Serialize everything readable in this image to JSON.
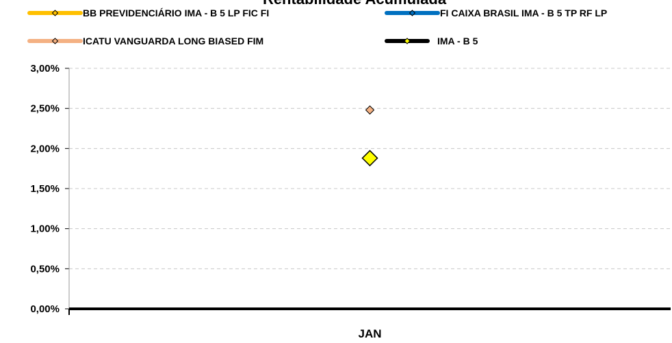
{
  "chart_data": {
    "type": "line",
    "title": "Rentabilidade Acumulada",
    "categories": [
      "JAN"
    ],
    "yticks": [
      "0,00%",
      "0,50%",
      "1,00%",
      "1,50%",
      "2,00%",
      "2,50%",
      "3,00%"
    ],
    "ylim": [
      0,
      3
    ],
    "grid": true,
    "legend_position": "top",
    "series": [
      {
        "name": "BB PREVIDENCIÁRIO IMA - B 5 LP FIC FI",
        "values": [
          null
        ],
        "color": "#FFC000",
        "marker": "diamond"
      },
      {
        "name": "FI CAIXA BRASIL IMA - B 5 TP RF LP",
        "values": [
          null
        ],
        "color": "#0070C0",
        "marker": "diamond"
      },
      {
        "name": "ICATU VANGUARDA LONG BIASED FIM",
        "values": [
          2.48
        ],
        "color": "#F4B183",
        "marker": "diamond"
      },
      {
        "name": "IMA - B 5",
        "values": [
          1.88
        ],
        "color": "#000000",
        "marker_fill": "#FFFF00",
        "marker": "diamond"
      }
    ]
  }
}
